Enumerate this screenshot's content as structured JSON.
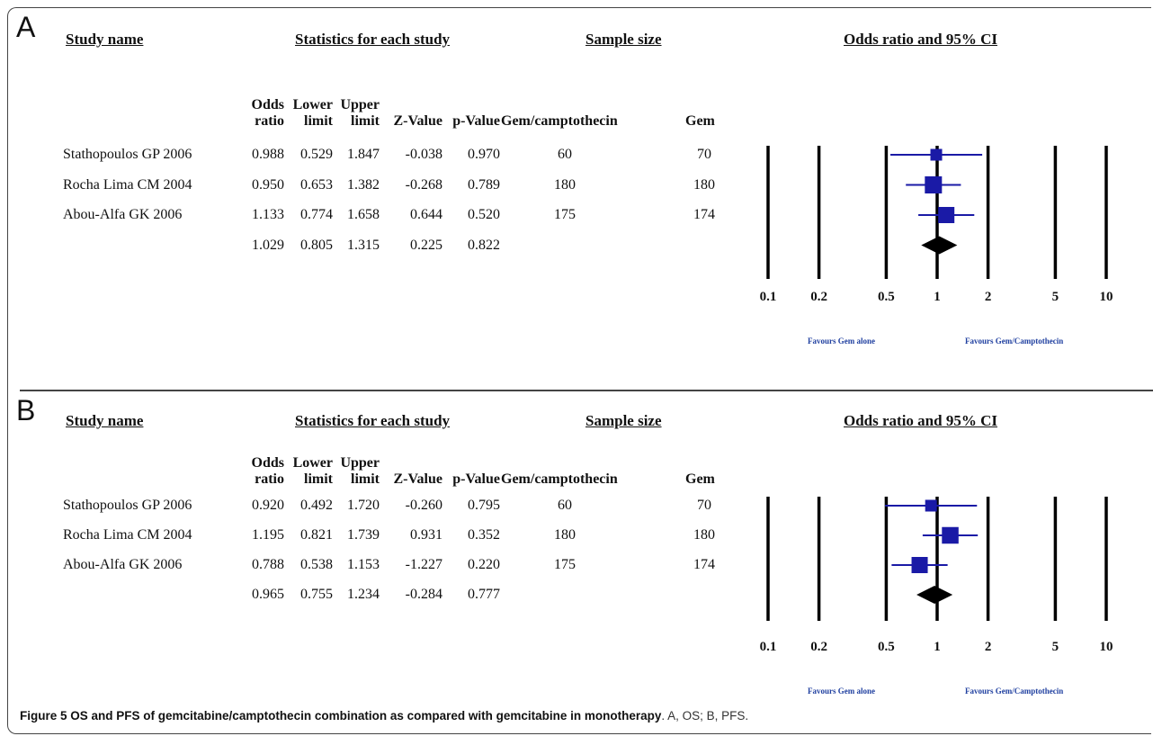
{
  "caption": {
    "label": "Figure 5",
    "title": "OS and PFS of gemcitabine/camptothecin combination as compared with gemcitabine in monotherapy",
    "rest": ". A, OS; B, PFS."
  },
  "headers": {
    "study_name": "Study name",
    "statistics": "Statistics for each study",
    "sample_size": "Sample size",
    "odds_ratio_ci": "Odds ratio and 95% CI"
  },
  "columns": {
    "odds_1": "Odds",
    "odds_2": "ratio",
    "lower_1": "Lower",
    "lower_2": "limit",
    "upper_1": "Upper",
    "upper_2": "limit",
    "z": "Z-Value",
    "p": "p-Value",
    "gc": "Gem/camptothecin",
    "gem": "Gem"
  },
  "favours": {
    "left": "Favours Gem alone",
    "right": "Favours Gem/Camptothecin"
  },
  "axis": {
    "ticks": [
      0.1,
      0.2,
      0.5,
      1,
      2,
      5,
      10
    ],
    "tick_labels": [
      "0.1",
      "0.2",
      "0.5",
      "1",
      "2",
      "5",
      "10"
    ],
    "scale": "log"
  },
  "colors": {
    "study_marker": "#1a1aa6",
    "summary_marker": "#000000"
  },
  "chart_data": [
    {
      "type": "forest",
      "panel": "A",
      "rows": [
        {
          "study": "Stathopoulos GP 2006",
          "or": "0.988",
          "lower": "0.529",
          "upper": "1.847",
          "z": "-0.038",
          "p": "0.970",
          "gc": "60",
          "gem": "70",
          "weight": 1
        },
        {
          "study": "Rocha Lima CM 2004",
          "or": "0.950",
          "lower": "0.653",
          "upper": "1.382",
          "z": "-0.268",
          "p": "0.789",
          "gc": "180",
          "gem": "180",
          "weight": 2.2
        },
        {
          "study": "Abou-Alfa GK 2006",
          "or": "1.133",
          "lower": "0.774",
          "upper": "1.658",
          "z": "0.644",
          "p": "0.520",
          "gc": "175",
          "gem": "174",
          "weight": 2
        }
      ],
      "summary": {
        "or": "1.029",
        "lower": "0.805",
        "upper": "1.315",
        "z": "0.225",
        "p": "0.822"
      }
    },
    {
      "type": "forest",
      "panel": "B",
      "rows": [
        {
          "study": "Stathopoulos GP 2006",
          "or": "0.920",
          "lower": "0.492",
          "upper": "1.720",
          "z": "-0.260",
          "p": "0.795",
          "gc": "60",
          "gem": "70",
          "weight": 1
        },
        {
          "study": "Rocha Lima CM 2004",
          "or": "1.195",
          "lower": "0.821",
          "upper": "1.739",
          "z": "0.931",
          "p": "0.352",
          "gc": "180",
          "gem": "180",
          "weight": 2.1
        },
        {
          "study": "Abou-Alfa GK 2006",
          "or": "0.788",
          "lower": "0.538",
          "upper": "1.153",
          "z": "-1.227",
          "p": "0.220",
          "gc": "175",
          "gem": "174",
          "weight": 2
        }
      ],
      "summary": {
        "or": "0.965",
        "lower": "0.755",
        "upper": "1.234",
        "z": "-0.284",
        "p": "0.777"
      }
    }
  ]
}
